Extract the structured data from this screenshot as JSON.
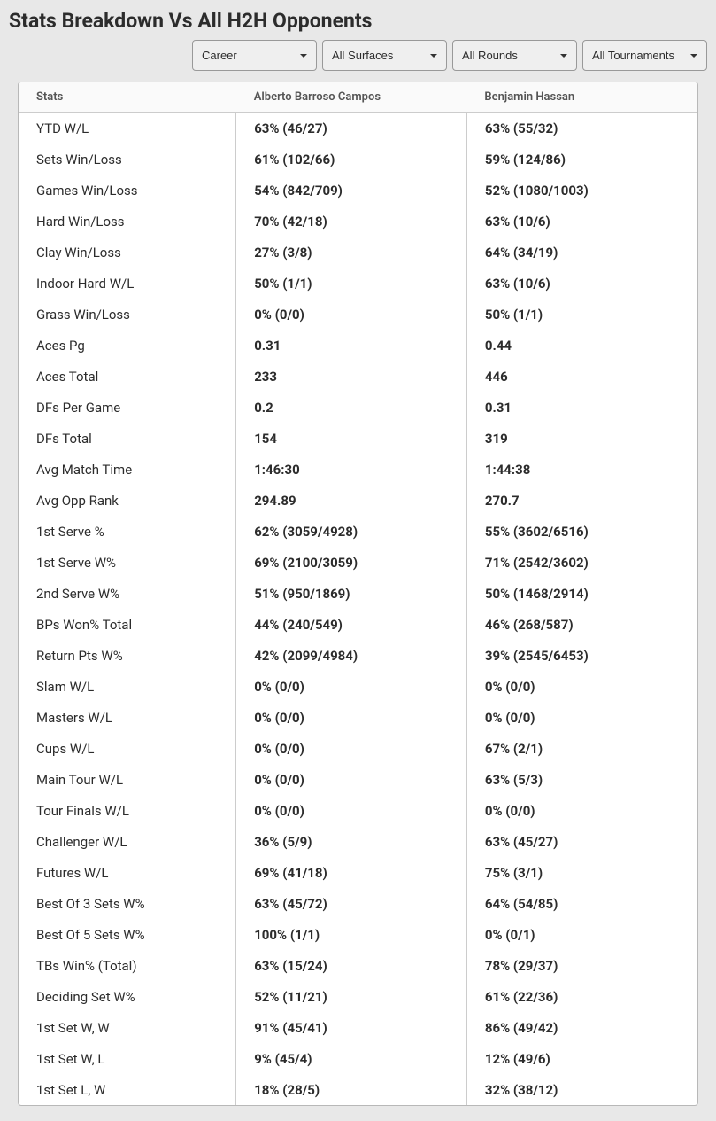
{
  "title": "Stats Breakdown Vs All H2H Opponents",
  "filters": {
    "period": {
      "selected": "Career"
    },
    "surface": {
      "selected": "All Surfaces"
    },
    "rounds": {
      "selected": "All Rounds"
    },
    "tournaments": {
      "selected": "All Tournaments"
    }
  },
  "table": {
    "headers": {
      "stats": "Stats",
      "player1": "Alberto Barroso Campos",
      "player2": "Benjamin Hassan"
    },
    "rows": [
      {
        "label": "YTD W/L",
        "p1": "63% (46/27)",
        "p2": "63% (55/32)"
      },
      {
        "label": "Sets Win/Loss",
        "p1": "61% (102/66)",
        "p2": "59% (124/86)"
      },
      {
        "label": "Games Win/Loss",
        "p1": "54% (842/709)",
        "p2": "52% (1080/1003)"
      },
      {
        "label": "Hard Win/Loss",
        "p1": "70% (42/18)",
        "p2": "63% (10/6)"
      },
      {
        "label": "Clay Win/Loss",
        "p1": "27% (3/8)",
        "p2": "64% (34/19)"
      },
      {
        "label": "Indoor Hard W/L",
        "p1": "50% (1/1)",
        "p2": "63% (10/6)"
      },
      {
        "label": "Grass Win/Loss",
        "p1": "0% (0/0)",
        "p2": "50% (1/1)"
      },
      {
        "label": "Aces Pg",
        "p1": "0.31",
        "p2": "0.44"
      },
      {
        "label": "Aces Total",
        "p1": "233",
        "p2": "446"
      },
      {
        "label": "DFs Per Game",
        "p1": "0.2",
        "p2": "0.31"
      },
      {
        "label": "DFs Total",
        "p1": "154",
        "p2": "319"
      },
      {
        "label": "Avg Match Time",
        "p1": "1:46:30",
        "p2": "1:44:38"
      },
      {
        "label": "Avg Opp Rank",
        "p1": "294.89",
        "p2": "270.7"
      },
      {
        "label": "1st Serve %",
        "p1": "62% (3059/4928)",
        "p2": "55% (3602/6516)"
      },
      {
        "label": "1st Serve W%",
        "p1": "69% (2100/3059)",
        "p2": "71% (2542/3602)"
      },
      {
        "label": "2nd Serve W%",
        "p1": "51% (950/1869)",
        "p2": "50% (1468/2914)"
      },
      {
        "label": "BPs Won% Total",
        "p1": "44% (240/549)",
        "p2": "46% (268/587)"
      },
      {
        "label": "Return Pts W%",
        "p1": "42% (2099/4984)",
        "p2": "39% (2545/6453)"
      },
      {
        "label": "Slam W/L",
        "p1": "0% (0/0)",
        "p2": "0% (0/0)"
      },
      {
        "label": "Masters W/L",
        "p1": "0% (0/0)",
        "p2": "0% (0/0)"
      },
      {
        "label": "Cups W/L",
        "p1": "0% (0/0)",
        "p2": "67% (2/1)"
      },
      {
        "label": "Main Tour W/L",
        "p1": "0% (0/0)",
        "p2": "63% (5/3)"
      },
      {
        "label": "Tour Finals W/L",
        "p1": "0% (0/0)",
        "p2": "0% (0/0)"
      },
      {
        "label": "Challenger W/L",
        "p1": "36% (5/9)",
        "p2": "63% (45/27)"
      },
      {
        "label": "Futures W/L",
        "p1": "69% (41/18)",
        "p2": "75% (3/1)"
      },
      {
        "label": "Best Of 3 Sets W%",
        "p1": "63% (45/72)",
        "p2": "64% (54/85)"
      },
      {
        "label": "Best Of 5 Sets W%",
        "p1": "100% (1/1)",
        "p2": "0% (0/1)"
      },
      {
        "label": "TBs Win% (Total)",
        "p1": "63% (15/24)",
        "p2": "78% (29/37)"
      },
      {
        "label": "Deciding Set W%",
        "p1": "52% (11/21)",
        "p2": "61% (22/36)"
      },
      {
        "label": "1st Set W, W",
        "p1": "91% (45/41)",
        "p2": "86% (49/42)"
      },
      {
        "label": "1st Set W, L",
        "p1": "9% (45/4)",
        "p2": "12% (49/6)"
      },
      {
        "label": "1st Set L, W",
        "p1": "18% (28/5)",
        "p2": "32% (38/12)"
      }
    ]
  }
}
